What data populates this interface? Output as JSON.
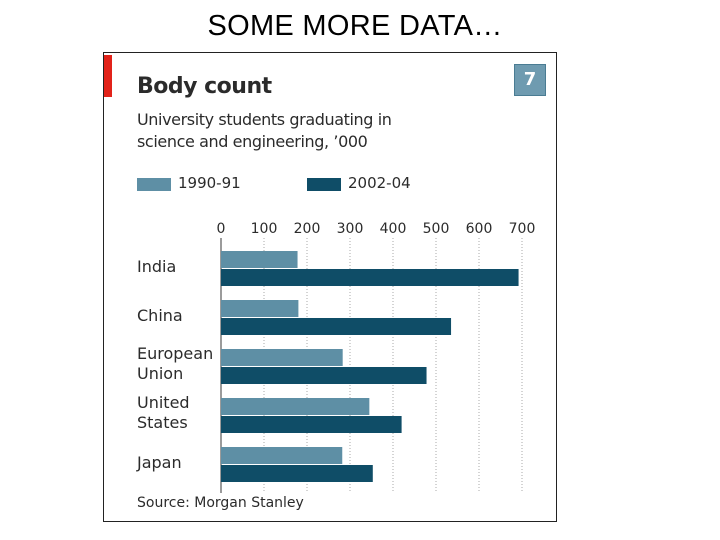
{
  "slide": {
    "title": "SOME MORE DATA…"
  },
  "chart_data": {
    "type": "bar",
    "orientation": "horizontal",
    "title": "Body count",
    "subtitle_lines": [
      "University students graduating in",
      "science and engineering, ’000"
    ],
    "chart_number": "7",
    "source": "Source: Morgan Stanley",
    "categories": [
      {
        "lines": [
          "India"
        ]
      },
      {
        "lines": [
          "China"
        ]
      },
      {
        "lines": [
          "European",
          "Union"
        ]
      },
      {
        "lines": [
          "United",
          "States"
        ]
      },
      {
        "lines": [
          "Japan"
        ]
      }
    ],
    "series": [
      {
        "name": "1990-91",
        "color": "#5e8fa5",
        "values": [
          178,
          180,
          283,
          345,
          282
        ]
      },
      {
        "name": "2002-04",
        "color": "#0f4d67",
        "values": [
          692,
          535,
          478,
          420,
          353
        ]
      }
    ],
    "xlim": [
      0,
      700
    ],
    "xticks": [
      "0",
      "100",
      "200",
      "300",
      "400",
      "500",
      "600",
      "700"
    ],
    "grid": true,
    "axis_color": "#7a7a7a",
    "grid_color": "#a8a8a8",
    "accent_color": "#e2231a"
  }
}
